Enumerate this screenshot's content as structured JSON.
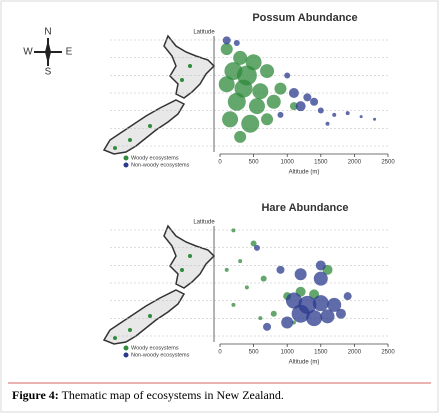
{
  "compass": {
    "n": "N",
    "s": "S",
    "w": "W",
    "e": "E"
  },
  "chart_data": [
    {
      "type": "scatter",
      "title": "Possum Abundance",
      "x_label": "Altitude (m)",
      "y_label": "Latitude",
      "xlim": [
        0,
        2500
      ],
      "xticks": [
        0,
        500,
        1000,
        1500,
        2000,
        2500
      ],
      "ylim": [
        -47,
        -34
      ],
      "series": [
        {
          "name": "Woody ecosystems",
          "color": "#2f8a3c",
          "x": [
            100,
            300,
            500,
            200,
            400,
            700,
            100,
            350,
            600,
            900,
            250,
            550,
            800,
            150,
            450,
            700,
            300,
            1100
          ],
          "values": [
            -35.5,
            -36.5,
            -37,
            -38,
            -38.5,
            -38,
            -39.5,
            -40,
            -40.3,
            -40,
            -41.5,
            -42,
            -41.5,
            -43.5,
            -44,
            -43.5,
            -45.5,
            -42
          ],
          "sizes": [
            6,
            7,
            8,
            9,
            10,
            7,
            8,
            9,
            8,
            6,
            9,
            8,
            7,
            8,
            9,
            6,
            6,
            4
          ]
        },
        {
          "name": "Non-woody ecosystems",
          "color": "#2b3a8c",
          "x": [
            100,
            250,
            1100,
            1300,
            1400,
            1200,
            1500,
            900,
            1700,
            1900,
            2100,
            1600,
            1000,
            2300
          ],
          "values": [
            -34.5,
            -34.8,
            -40.5,
            -41,
            -41.5,
            -42,
            -42.5,
            -43,
            -43,
            -42.8,
            -43.2,
            -44,
            -38.5,
            -43.5
          ],
          "sizes": [
            4,
            3,
            5,
            4,
            4,
            5,
            3,
            3,
            2,
            2,
            1.5,
            2,
            3,
            1.5
          ]
        }
      ]
    },
    {
      "type": "scatter",
      "title": "Hare Abundance",
      "x_label": "Altitude (m)",
      "y_label": "Latitude",
      "xlim": [
        0,
        2500
      ],
      "xticks": [
        0,
        500,
        1000,
        1500,
        2000,
        2500
      ],
      "ylim": [
        -47,
        -34
      ],
      "series": [
        {
          "name": "Woody ecosystems",
          "color": "#2f8a3c",
          "x": [
            200,
            500,
            300,
            100,
            650,
            400,
            1000,
            1200,
            1400,
            800,
            600,
            200,
            1600,
            1100
          ],
          "values": [
            -34.5,
            -36,
            -38,
            -39,
            -40,
            -41,
            -42,
            -41.5,
            -41.8,
            -44,
            -44.5,
            -43,
            -39,
            -45
          ],
          "sizes": [
            2,
            3,
            2,
            2,
            3,
            2,
            4,
            5,
            5,
            3,
            2,
            2,
            5,
            2
          ]
        },
        {
          "name": "Non-woody ecosystems",
          "color": "#2b3a8c",
          "x": [
            900,
            1200,
            1500,
            1100,
            1300,
            1500,
            1700,
            1200,
            1400,
            1600,
            1000,
            1800,
            1900,
            700,
            1500,
            550
          ],
          "values": [
            -39,
            -39.5,
            -40,
            -42.5,
            -43,
            -42.8,
            -43,
            -44,
            -44.5,
            -44.3,
            -45,
            -44,
            -42,
            -45.5,
            -38.5,
            -36.5
          ],
          "sizes": [
            4,
            6,
            7,
            8,
            9,
            8,
            7,
            9,
            8,
            7,
            6,
            5,
            4,
            4,
            5,
            3
          ]
        }
      ]
    }
  ],
  "caption": {
    "label": "Figure 4:",
    "text": "Thematic map of ecosystems in New Zealand."
  }
}
